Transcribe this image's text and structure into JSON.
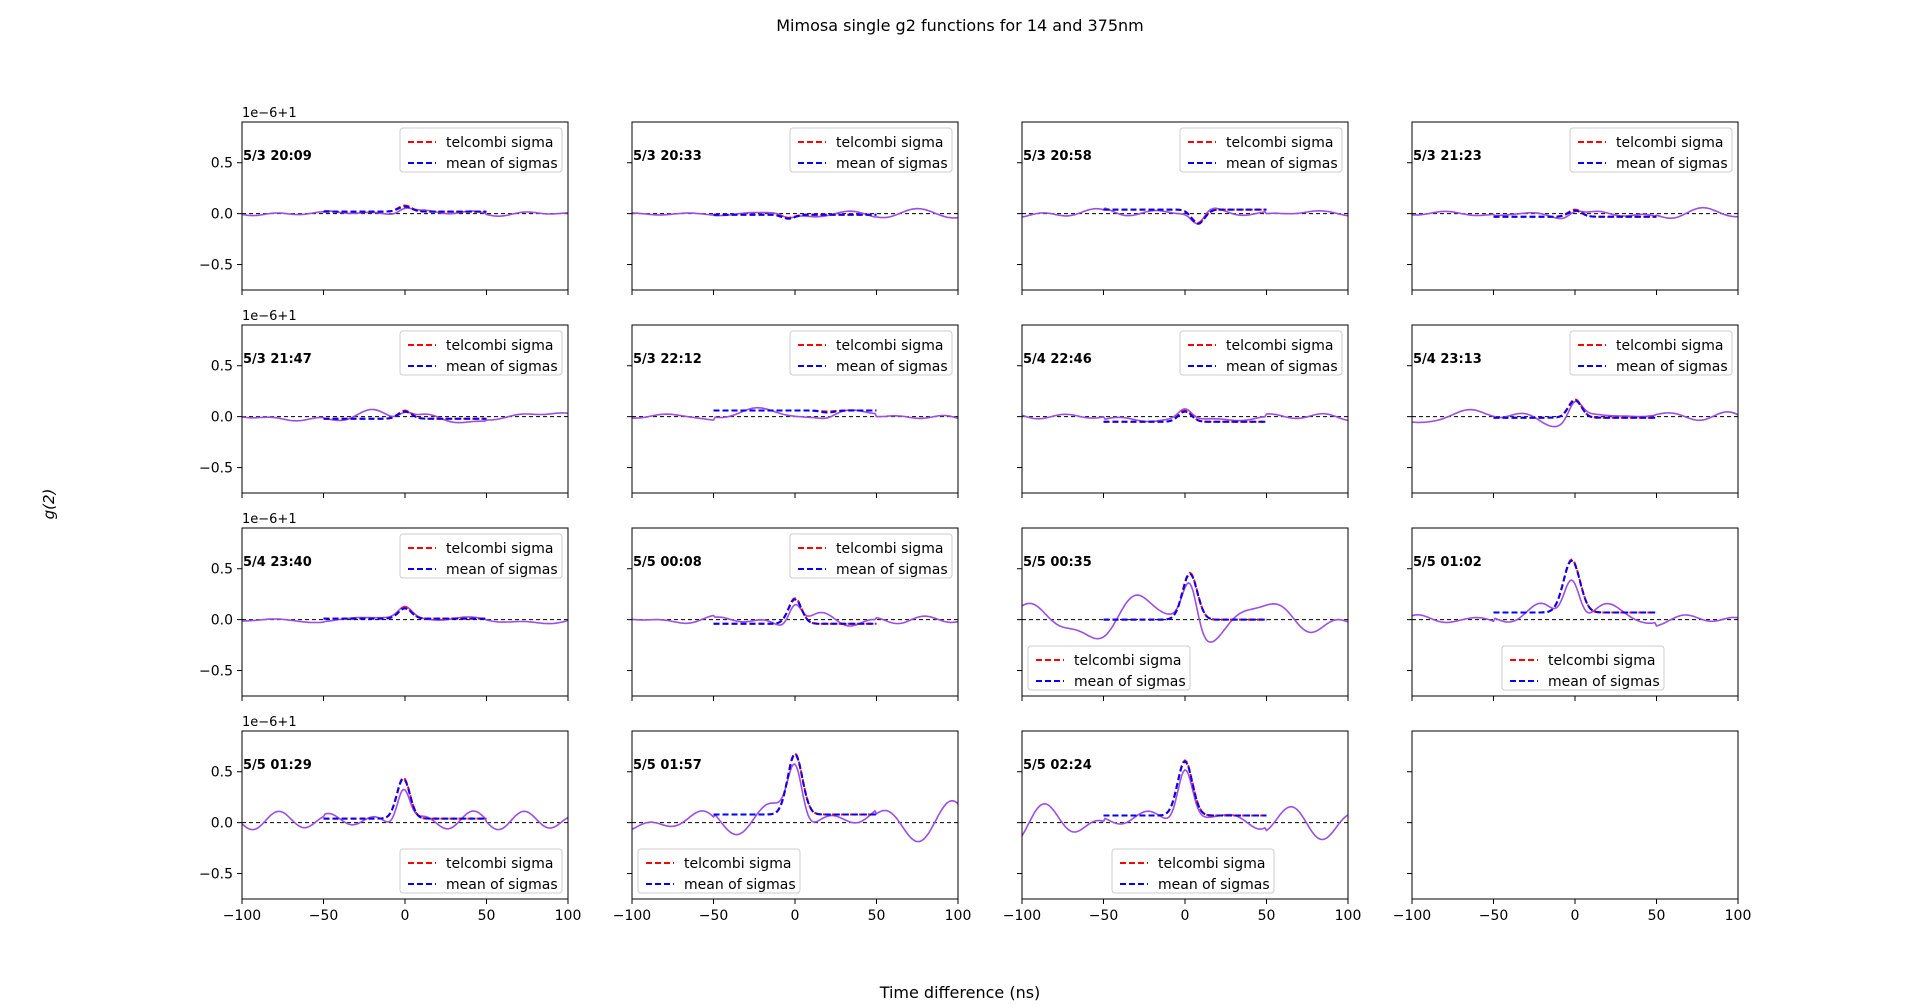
{
  "figure": {
    "title": "Mimosa single g2 functions for 14 and 375nm",
    "xlabel": "Time difference (ns)",
    "ylabel": "g(2)",
    "offset_text": "1e−6+1"
  },
  "colors": {
    "data_line": "#9b4fe3",
    "telcombi": "#ff0000",
    "mean_sigmas": "#0000ff",
    "baseline": "#000000"
  },
  "chart_data": {
    "type": "line",
    "xlim": [
      -100,
      100
    ],
    "ylim": [
      -0.75,
      0.9
    ],
    "y_unit": "1e-6 offset from 1",
    "xticks": [
      "−100",
      "−50",
      "0",
      "50",
      "100"
    ],
    "yticks": [
      "0.5",
      "0.0",
      "−0.5"
    ],
    "legend_entries": [
      "telcombi sigma",
      "mean of sigmas"
    ],
    "fit_x": [
      -50,
      50
    ],
    "panels": [
      {
        "label": "5/3 20:09",
        "legend": "top-right",
        "offset": 0.02,
        "amp": 0.05,
        "center": 0,
        "width": 4,
        "noise": 0.05,
        "seed": 3,
        "empty": false
      },
      {
        "label": "5/3 20:33",
        "legend": "top-right",
        "offset": -0.01,
        "amp": -0.04,
        "center": -4,
        "width": 4,
        "noise": 0.05,
        "seed": 7,
        "empty": false
      },
      {
        "label": "5/3 20:58",
        "legend": "top-right",
        "offset": 0.04,
        "amp": -0.14,
        "center": 8,
        "width": 4,
        "noise": 0.06,
        "seed": 11,
        "empty": false
      },
      {
        "label": "5/3 21:23",
        "legend": "top-right",
        "offset": -0.03,
        "amp": 0.06,
        "center": 0,
        "width": 4,
        "noise": 0.06,
        "seed": 13,
        "empty": false
      },
      {
        "label": "5/3 21:47",
        "legend": "top-right",
        "offset": -0.02,
        "amp": 0.07,
        "center": 0,
        "width": 4,
        "noise": 0.05,
        "seed": 17,
        "empty": false
      },
      {
        "label": "5/3 22:12",
        "legend": "top-right",
        "offset": 0.06,
        "amp": -0.02,
        "center": 20,
        "width": 4,
        "noise": 0.06,
        "seed": 19,
        "empty": false
      },
      {
        "label": "5/4 22:46",
        "legend": "top-right",
        "offset": -0.05,
        "amp": 0.1,
        "center": 0,
        "width": 4,
        "noise": 0.05,
        "seed": 23,
        "empty": false
      },
      {
        "label": "5/4 23:13",
        "legend": "top-right",
        "offset": -0.01,
        "amp": 0.17,
        "center": 0,
        "width": 4,
        "noise": 0.08,
        "seed": 29,
        "empty": false
      },
      {
        "label": "5/4 23:40",
        "legend": "top-right",
        "offset": 0.01,
        "amp": 0.1,
        "center": 0,
        "width": 4,
        "noise": 0.06,
        "seed": 31,
        "empty": false
      },
      {
        "label": "5/5 00:08",
        "legend": "top-right",
        "offset": -0.04,
        "amp": 0.24,
        "center": 0,
        "width": 4,
        "noise": 0.07,
        "seed": 37,
        "empty": false
      },
      {
        "label": "5/5 00:35",
        "legend": "bottom-left",
        "offset": 0.0,
        "amp": 0.45,
        "center": 3,
        "width": 4.5,
        "noise": 0.17,
        "seed": 41,
        "empty": false
      },
      {
        "label": "5/5 01:02",
        "legend": "bottom-center",
        "offset": 0.07,
        "amp": 0.51,
        "center": -2,
        "width": 5,
        "noise": 0.15,
        "seed": 43,
        "empty": false
      },
      {
        "label": "5/5 01:29",
        "legend": "bottom-right",
        "offset": 0.04,
        "amp": 0.39,
        "center": -1,
        "width": 4,
        "noise": 0.15,
        "seed": 47,
        "empty": false
      },
      {
        "label": "5/5 01:57",
        "legend": "bottom-left",
        "offset": 0.08,
        "amp": 0.59,
        "center": 0,
        "width": 4.5,
        "noise": 0.15,
        "seed": 53,
        "empty": false
      },
      {
        "label": "5/5 02:24",
        "legend": "bottom-center",
        "offset": 0.07,
        "amp": 0.53,
        "center": 0,
        "width": 4.5,
        "noise": 0.2,
        "seed": 59,
        "empty": false
      },
      {
        "label": "",
        "legend": "none",
        "offset": 0,
        "amp": 0,
        "center": 0,
        "width": 4,
        "noise": 0,
        "seed": 1,
        "empty": true
      }
    ]
  }
}
